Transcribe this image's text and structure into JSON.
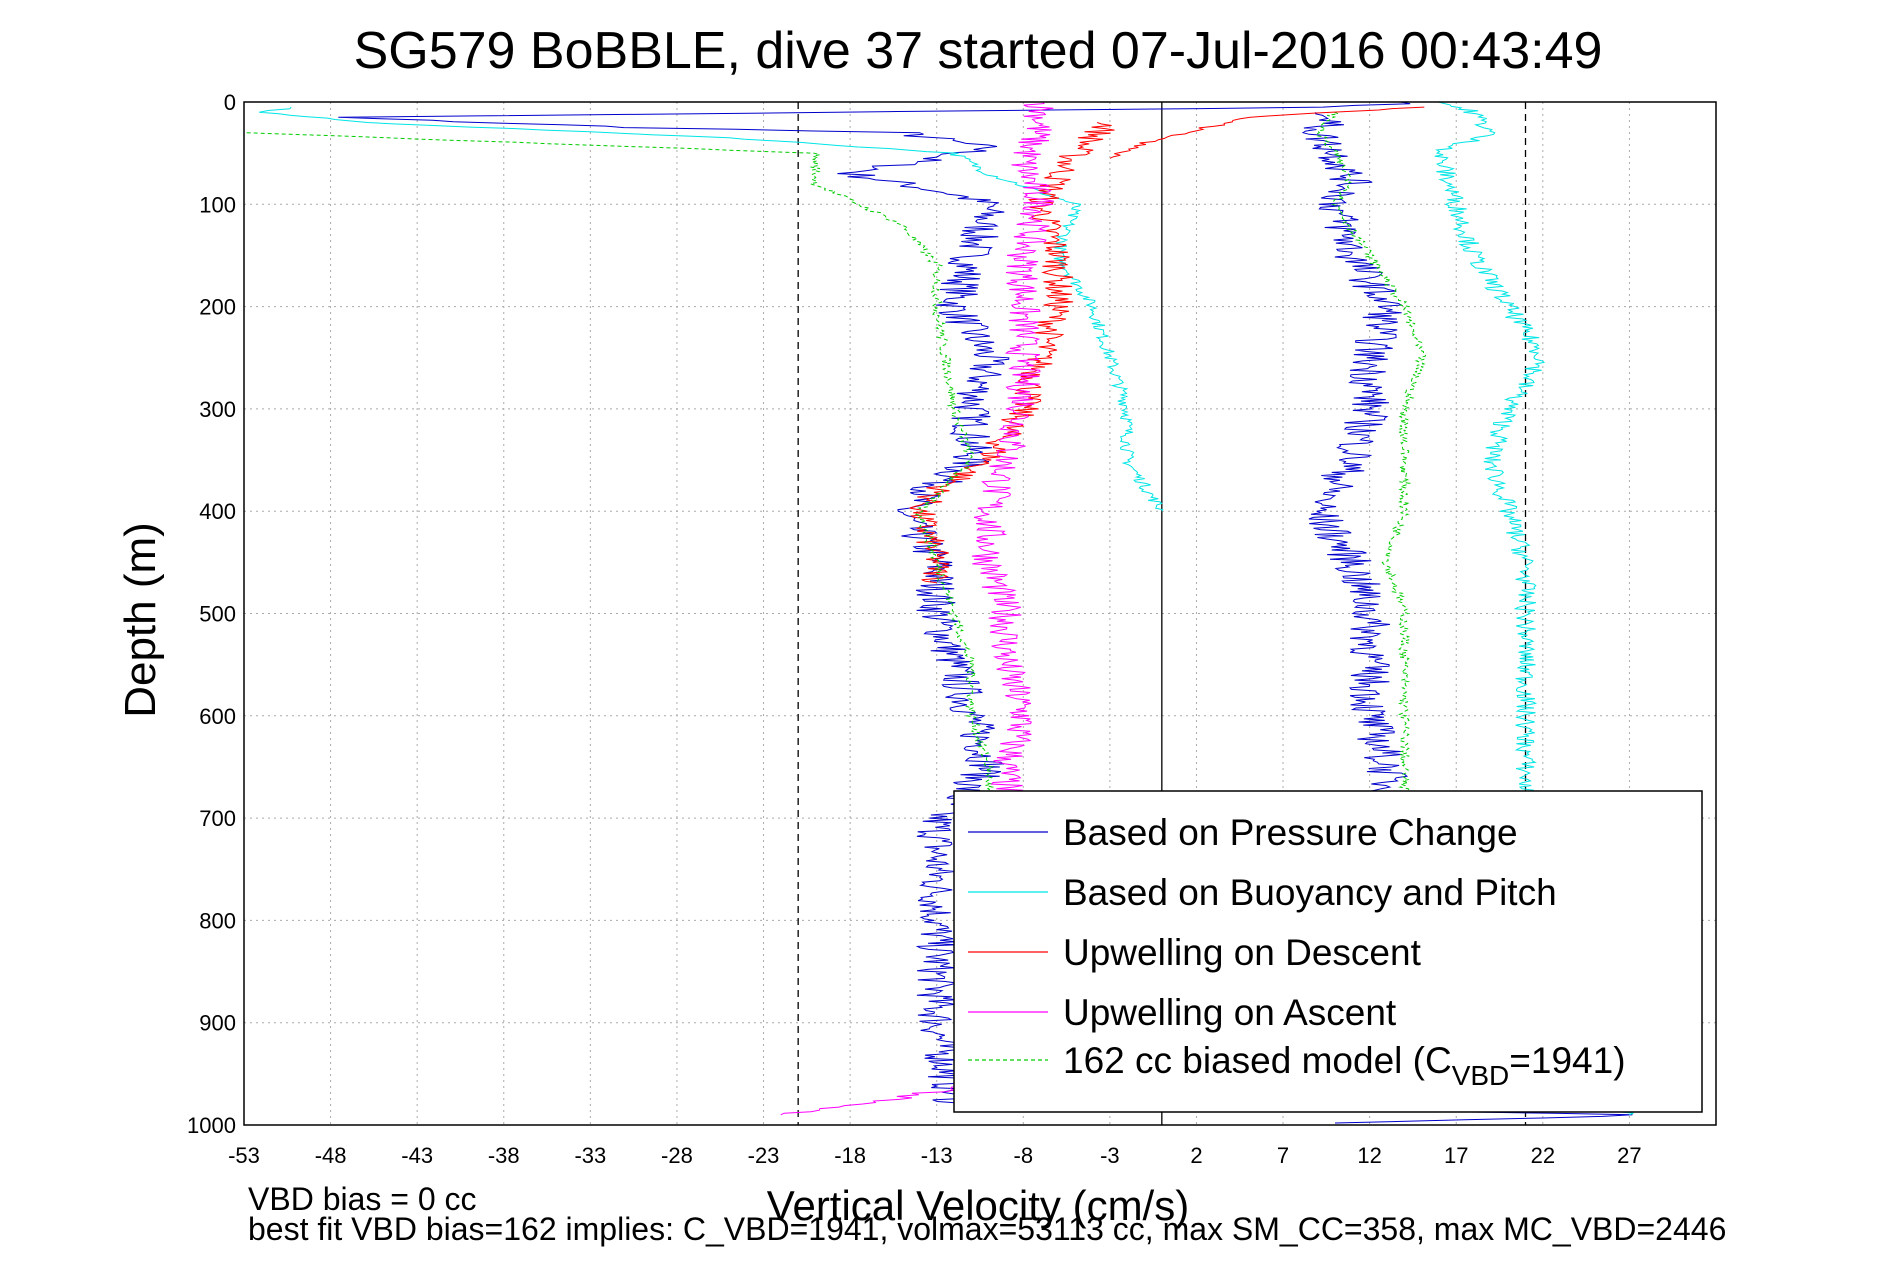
{
  "chart_data": {
    "type": "line",
    "title": "SG579 BoBBLE, dive 37 started 07-Jul-2016 00:43:49",
    "xlabel": "Vertical Velocity (cm/s)",
    "ylabel": "Depth (m)",
    "xlim": [
      -53,
      32
    ],
    "ylim": [
      0,
      1000
    ],
    "y_reversed": true,
    "grid": true,
    "x_ticks": [
      -53,
      -48,
      -43,
      -38,
      -33,
      -28,
      -23,
      -18,
      -13,
      -8,
      -3,
      2,
      7,
      12,
      17,
      22,
      27
    ],
    "y_ticks": [
      0,
      100,
      200,
      300,
      400,
      500,
      600,
      700,
      800,
      900,
      1000
    ],
    "reference_lines": [
      {
        "x": -21,
        "style": "dashed",
        "color": "#000000"
      },
      {
        "x": 0,
        "style": "solid",
        "color": "#000000"
      },
      {
        "x": 21,
        "style": "dashed",
        "color": "#000000"
      }
    ],
    "legend_position": "bottom-right",
    "series": [
      {
        "name": "Based on Pressure Change",
        "color": "#0000cc",
        "noise": 1.2,
        "points": [
          [
            15,
            0
          ],
          [
            10,
            5
          ],
          [
            -48,
            15
          ],
          [
            -30,
            25
          ],
          [
            -15,
            30
          ],
          [
            -10,
            45
          ],
          [
            -18,
            70
          ],
          [
            -12,
            90
          ],
          [
            -10,
            100
          ],
          [
            -11,
            150
          ],
          [
            -12,
            200
          ],
          [
            -10,
            250
          ],
          [
            -11,
            300
          ],
          [
            -11,
            350
          ],
          [
            -15,
            400
          ],
          [
            -13,
            450
          ],
          [
            -13,
            500
          ],
          [
            -12,
            550
          ],
          [
            -11,
            600
          ],
          [
            -10,
            650
          ],
          [
            -13,
            700
          ],
          [
            -13,
            800
          ],
          [
            -13,
            900
          ],
          [
            -12,
            980
          ],
          [
            28,
            990
          ],
          [
            10,
            998
          ]
        ]
      },
      {
        "name": "Based on Buoyancy and Pitch",
        "color": "#00e5e5",
        "noise": 0.4,
        "points": [
          [
            -50,
            5
          ],
          [
            -52,
            10
          ],
          [
            -46,
            20
          ],
          [
            -25,
            35
          ],
          [
            -12,
            50
          ],
          [
            -10,
            70
          ],
          [
            -5,
            100
          ],
          [
            -6,
            150
          ],
          [
            -4,
            200
          ],
          [
            -3,
            250
          ],
          [
            -2,
            300
          ],
          [
            -2,
            350
          ],
          [
            0,
            400
          ]
        ]
      },
      {
        "name": "Upwelling on Descent",
        "color": "#ff0000",
        "noise": 0.9,
        "points": [
          [
            -3,
            20
          ],
          [
            -5,
            50
          ],
          [
            -7,
            100
          ],
          [
            -6,
            150
          ],
          [
            -6,
            200
          ],
          [
            -7,
            250
          ],
          [
            -8,
            300
          ],
          [
            -10,
            350
          ],
          [
            -13,
            380
          ],
          [
            -14,
            400
          ],
          [
            -13,
            450
          ],
          [
            -13,
            470
          ]
        ]
      },
      {
        "name": "Upwelling on Ascent",
        "color": "#ff00ff",
        "noise": 1.0,
        "points": [
          [
            -7,
            0
          ],
          [
            -7,
            20
          ],
          [
            -8,
            60
          ],
          [
            -7,
            100
          ],
          [
            -8,
            150
          ],
          [
            -8,
            200
          ],
          [
            -8,
            250
          ],
          [
            -8,
            300
          ],
          [
            -9,
            350
          ],
          [
            -10,
            400
          ],
          [
            -10,
            450
          ],
          [
            -9,
            500
          ],
          [
            -9,
            550
          ],
          [
            -8,
            600
          ],
          [
            -9,
            650
          ],
          [
            -9,
            700
          ],
          [
            -9,
            800
          ],
          [
            -9,
            900
          ],
          [
            -10,
            960
          ],
          [
            -22,
            990
          ]
        ]
      },
      {
        "name": "162 cc biased model (CVBD=1941)",
        "label_main": "162 cc biased model (C",
        "label_sub": "VBD",
        "label_tail": "=1941)",
        "color": "#00cc00",
        "dashed": true,
        "noise": 0.3,
        "points": [
          [
            -53,
            30
          ],
          [
            -20,
            50
          ],
          [
            -20,
            80
          ],
          [
            -15,
            120
          ],
          [
            -13,
            160
          ],
          [
            -13,
            200
          ],
          [
            -12,
            300
          ],
          [
            -11,
            350
          ],
          [
            -14,
            400
          ],
          [
            -13,
            450
          ],
          [
            -12,
            500
          ],
          [
            -11,
            550
          ],
          [
            -11,
            600
          ],
          [
            -10,
            650
          ],
          [
            -10,
            700
          ],
          [
            -10,
            800
          ],
          [
            -10,
            900
          ],
          [
            -10,
            980
          ]
        ]
      },
      {
        "name": "",
        "color": "#0000cc",
        "noise": 1.2,
        "points": [
          [
            10,
            10
          ],
          [
            9,
            30
          ],
          [
            10,
            50
          ],
          [
            11,
            80
          ],
          [
            10,
            100
          ],
          [
            11,
            150
          ],
          [
            13,
            200
          ],
          [
            12,
            250
          ],
          [
            12,
            300
          ],
          [
            11,
            350
          ],
          [
            9,
            400
          ],
          [
            11,
            450
          ],
          [
            12,
            500
          ],
          [
            12,
            550
          ],
          [
            12,
            600
          ],
          [
            13,
            650
          ],
          [
            13,
            700
          ],
          [
            13,
            800
          ],
          [
            13,
            900
          ],
          [
            13,
            980
          ]
        ]
      },
      {
        "name": "",
        "color": "#00e5e5",
        "noise": 0.6,
        "points": [
          [
            16,
            0
          ],
          [
            18,
            10
          ],
          [
            19,
            30
          ],
          [
            16,
            50
          ],
          [
            17,
            100
          ],
          [
            18,
            150
          ],
          [
            20,
            200
          ],
          [
            22,
            250
          ],
          [
            20,
            300
          ],
          [
            19,
            350
          ],
          [
            20,
            400
          ],
          [
            21,
            450
          ],
          [
            21,
            500
          ],
          [
            21,
            550
          ],
          [
            21,
            600
          ],
          [
            21,
            650
          ],
          [
            21,
            700
          ],
          [
            22,
            800
          ],
          [
            22,
            900
          ],
          [
            27,
            990
          ]
        ]
      },
      {
        "name": "",
        "color": "#00cc00",
        "dashed": true,
        "noise": 0.3,
        "points": [
          [
            10,
            10
          ],
          [
            9,
            30
          ],
          [
            10,
            50
          ],
          [
            11,
            80
          ],
          [
            10,
            100
          ],
          [
            12,
            150
          ],
          [
            14,
            200
          ],
          [
            15,
            250
          ],
          [
            14,
            300
          ],
          [
            14,
            350
          ],
          [
            14,
            400
          ],
          [
            13,
            450
          ],
          [
            14,
            500
          ],
          [
            14,
            550
          ],
          [
            14,
            600
          ],
          [
            14,
            650
          ],
          [
            14,
            700
          ],
          [
            14,
            800
          ],
          [
            14,
            900
          ],
          [
            14,
            980
          ]
        ]
      },
      {
        "name": "",
        "color": "#ff0000",
        "noise": 0.4,
        "points": [
          [
            15,
            5
          ],
          [
            5,
            15
          ],
          [
            -1,
            40
          ],
          [
            -3,
            55
          ]
        ]
      }
    ]
  },
  "footer": {
    "line1": "VBD bias = 0 cc",
    "line2": "best fit VBD bias=162 implies: C_VBD=1941, volmax=53113 cc, max SM_CC=358, max MC_VBD=2446"
  }
}
